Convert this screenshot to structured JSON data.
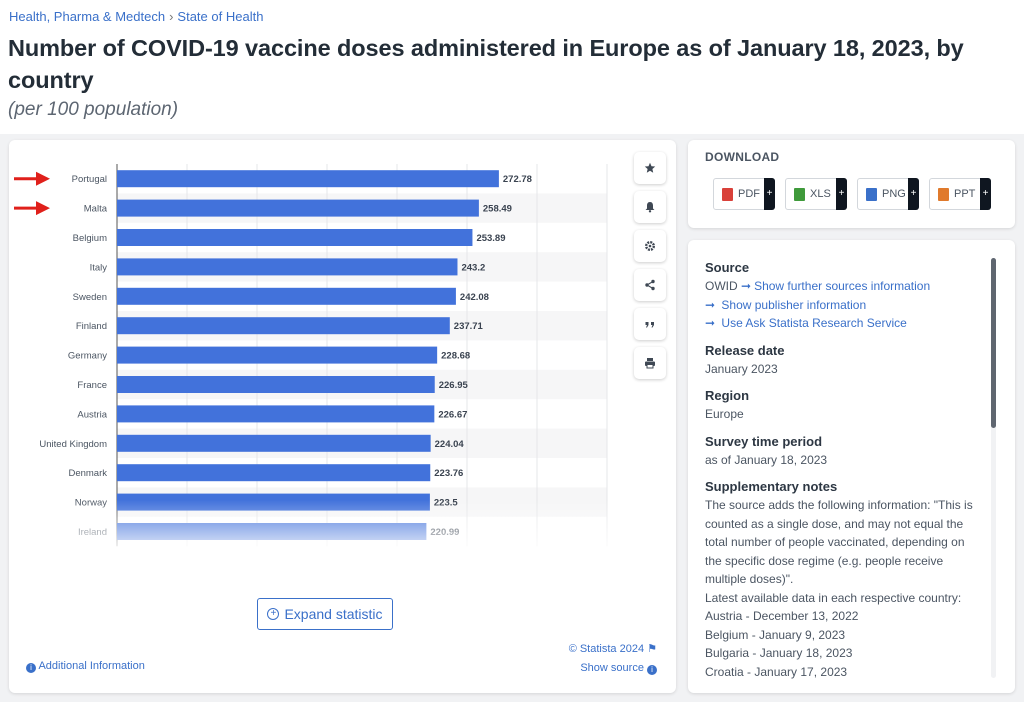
{
  "breadcrumb": {
    "item1": "Health, Pharma & Medtech",
    "separator": "›",
    "item2": "State of Health"
  },
  "title": "Number of COVID-19 vaccine doses administered in Europe as of January 18, 2023, by country",
  "subtitle": "(per 100 population)",
  "toolbar": [
    "star-icon",
    "bell-icon",
    "gear-icon",
    "share-icon",
    "quote-icon",
    "print-icon"
  ],
  "expand_label": "Expand statistic",
  "copyright": "© Statista 2024",
  "additional_info": "Additional Information",
  "show_source": "Show source",
  "download": {
    "heading": "DOWNLOAD",
    "buttons": [
      {
        "label": "PDF",
        "color": "#d9413a"
      },
      {
        "label": "XLS",
        "color": "#3f9a3b"
      },
      {
        "label": "PNG",
        "color": "#3a70c9"
      },
      {
        "label": "PPT",
        "color": "#e07a2c"
      }
    ]
  },
  "info": {
    "source_heading": "Source",
    "source_name": "OWID",
    "source_link1": "Show further sources information",
    "source_link2": "Show publisher information",
    "source_link3": "Use Ask Statista Research Service",
    "release_heading": "Release date",
    "release_value": "January 2023",
    "region_heading": "Region",
    "region_value": "Europe",
    "survey_heading": "Survey time period",
    "survey_value": "as of January 18, 2023",
    "notes_heading": "Supplementary notes",
    "notes_text": "The source adds the following information: \"This is counted as a single dose, and may not equal the total number of people vaccinated, depending on the specific dose regime (e.g. people receive multiple doses)\".",
    "notes_line2": "Latest available data in each respective country:",
    "notes_items": [
      "Austria - December 13, 2022",
      "Belgium - January 9, 2023",
      "Bulgaria - January 18, 2023",
      "Croatia - January 17, 2023"
    ]
  },
  "chart_data": {
    "type": "bar",
    "orientation": "horizontal",
    "categories": [
      "Portugal",
      "Malta",
      "Belgium",
      "Italy",
      "Sweden",
      "Finland",
      "Germany",
      "France",
      "Austria",
      "United Kingdom",
      "Denmark",
      "Norway",
      "Ireland"
    ],
    "values": [
      272.78,
      258.49,
      253.89,
      243.2,
      242.08,
      237.71,
      228.68,
      226.95,
      226.67,
      224.04,
      223.76,
      223.5,
      220.99
    ],
    "value_labels": [
      "272.78",
      "258.49",
      "253.89",
      "243.2",
      "242.08",
      "237.71",
      "228.68",
      "226.95",
      "226.67",
      "224.04",
      "223.76",
      "223.5",
      "220.99"
    ],
    "xlim": [
      0,
      350
    ],
    "bar_color": "#4272db",
    "highlight_color": "#e0201b",
    "highlighted": [
      "Portugal",
      "Malta"
    ],
    "grid": true
  }
}
